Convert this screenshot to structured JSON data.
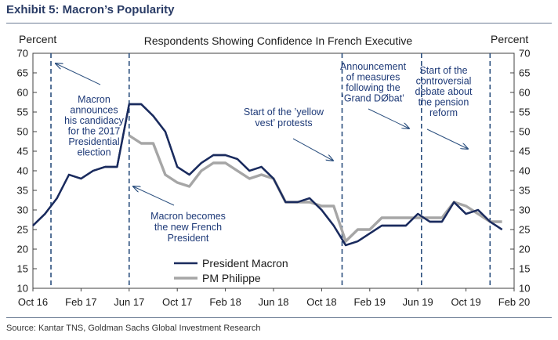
{
  "header": {
    "exhibit_title": "Exhibit 5: Macron’s Popularity"
  },
  "footer": {
    "source": "Source: Kantar TNS, Goldman Sachs Global Investment Research"
  },
  "chart_data": {
    "type": "line",
    "title": "Respondents Showing Confidence In French Executive",
    "ylabel_left": "Percent",
    "ylabel_right": "Percent",
    "ylim": [
      10,
      70
    ],
    "yticks": [
      10,
      15,
      20,
      25,
      30,
      35,
      40,
      45,
      50,
      55,
      60,
      65,
      70
    ],
    "xlim": [
      0,
      40
    ],
    "xticks": [
      {
        "label": "Oct 16",
        "x": 0
      },
      {
        "label": "Feb 17",
        "x": 4
      },
      {
        "label": "Jun 17",
        "x": 8
      },
      {
        "label": "Oct 17",
        "x": 12
      },
      {
        "label": "Feb 18",
        "x": 16
      },
      {
        "label": "Jun 18",
        "x": 20
      },
      {
        "label": "Oct 18",
        "x": 24
      },
      {
        "label": "Feb 19",
        "x": 28
      },
      {
        "label": "Jun 19",
        "x": 32
      },
      {
        "label": "Oct 19",
        "x": 36
      },
      {
        "label": "Feb 20",
        "x": 40
      }
    ],
    "legend": {
      "position": "bottom-center"
    },
    "series": [
      {
        "name": "President Macron",
        "color": "#1a2b5e",
        "x": [
          0,
          1,
          2,
          3,
          4,
          5,
          6,
          7,
          8,
          9,
          10,
          11,
          12,
          13,
          14,
          15,
          16,
          17,
          18,
          19,
          20,
          21,
          22,
          23,
          24,
          25,
          26,
          27,
          28,
          29,
          30,
          31,
          32,
          33,
          34,
          35,
          36,
          37,
          38,
          39
        ],
        "values": [
          26,
          29,
          33,
          39,
          38,
          40,
          41,
          41,
          57,
          57,
          54,
          50,
          41,
          39,
          42,
          44,
          44,
          43,
          40,
          41,
          38,
          32,
          32,
          33,
          30,
          26,
          21,
          22,
          24,
          26,
          26,
          26,
          29,
          27,
          27,
          32,
          29,
          30,
          27,
          25
        ]
      },
      {
        "name": "PM Philippe",
        "color": "#a6a6a6",
        "x": [
          8,
          9,
          10,
          11,
          12,
          13,
          14,
          15,
          16,
          17,
          18,
          19,
          20,
          21,
          22,
          23,
          24,
          25,
          26,
          27,
          28,
          29,
          30,
          31,
          32,
          33,
          34,
          35,
          36,
          37,
          38,
          39
        ],
        "values": [
          49,
          47,
          47,
          39,
          37,
          36,
          40,
          42,
          42,
          40,
          38,
          39,
          38,
          32,
          32,
          32,
          31,
          31,
          22,
          25,
          25,
          28,
          28,
          28,
          28,
          28,
          28,
          32,
          31,
          29,
          27,
          27
        ]
      }
    ],
    "event_lines": [
      {
        "x": 1.5,
        "name": "candidacy"
      },
      {
        "x": 8,
        "name": "president"
      },
      {
        "x": 25.7,
        "name": "yellow-vest"
      },
      {
        "x": 32.3,
        "name": "grand-debat"
      },
      {
        "x": 38,
        "name": "pension-reform"
      }
    ],
    "annotations": [
      {
        "name": "annotation-candidacy",
        "lines": [
          "Macron",
          "announces",
          "his candidacy",
          "for  the  2017",
          "Presidential",
          "election"
        ]
      },
      {
        "name": "annotation-president",
        "lines": [
          "Macron becomes",
          "the new French",
          "President"
        ]
      },
      {
        "name": "annotation-yellow-vest",
        "lines": [
          "Start of the ’yellow",
          "vest’ protests"
        ]
      },
      {
        "name": "annotation-grand-debat",
        "lines": [
          "Announcement",
          "of measures",
          "following the",
          "‘Grand DØbat’"
        ]
      },
      {
        "name": "annotation-pension",
        "lines": [
          "Start of the",
          "controversial",
          "debate about",
          "the pension",
          "reform"
        ]
      }
    ]
  }
}
